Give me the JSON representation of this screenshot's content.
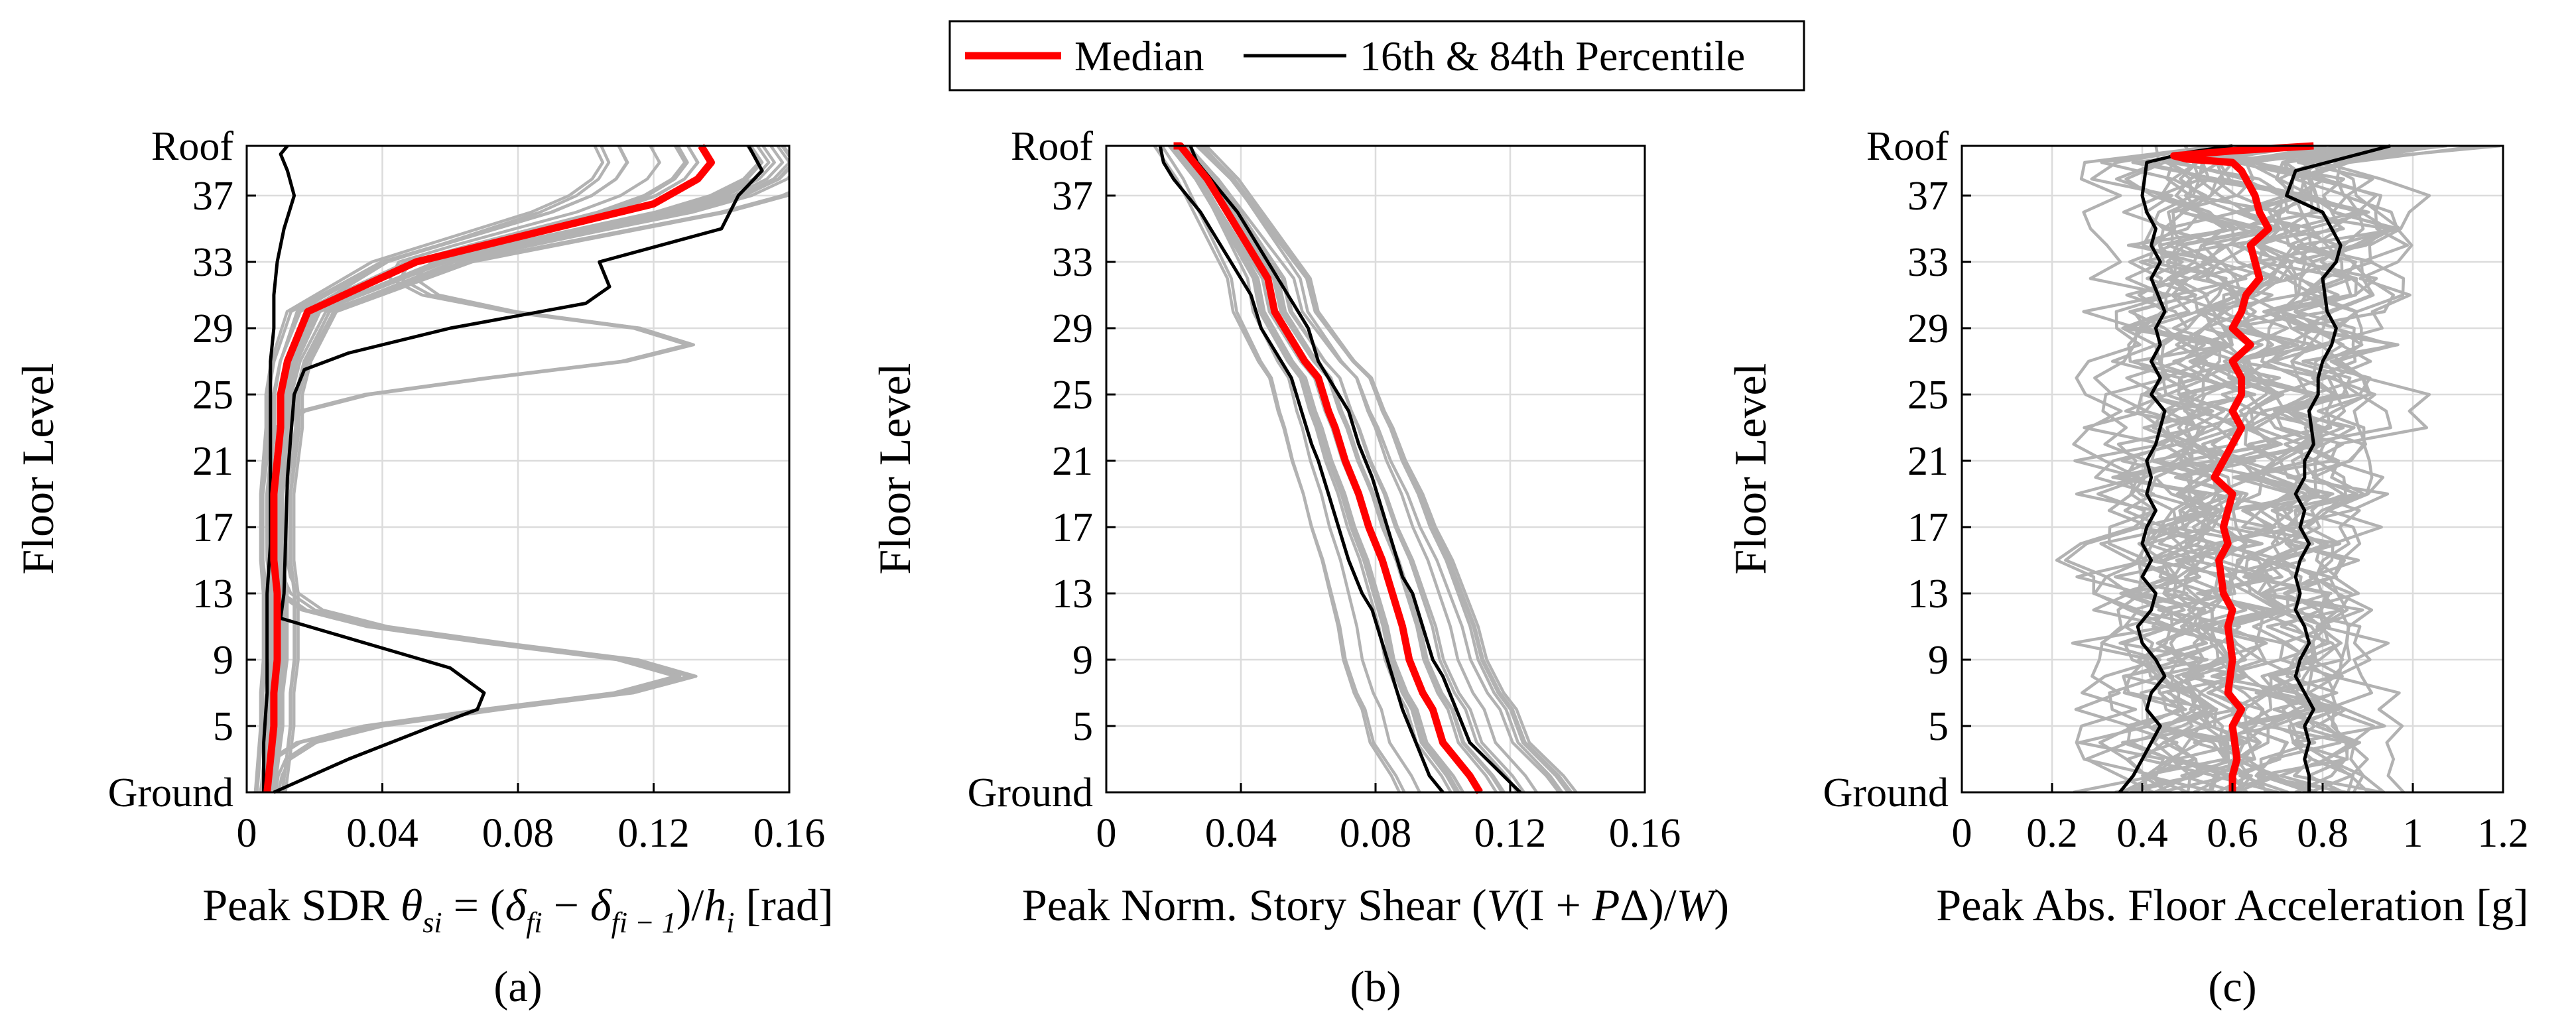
{
  "legend": {
    "entries": [
      {
        "label": "Median",
        "color": "#ff0000"
      },
      {
        "label": "16th & 84th Percentile",
        "color": "#000000"
      }
    ]
  },
  "colors": {
    "median": "#ff0000",
    "percentile": "#000000",
    "individual": "#b2b2b2",
    "grid": "#dcdcdc"
  },
  "chart_data": [
    {
      "type": "line",
      "panel_label": "(a)",
      "xlabel": "Peak SDR θsi = (δfi − δfi − 1)/hi [rad]",
      "xlabel_parts": {
        "prefix": "Peak SDR ",
        "theta": "θ",
        "theta_sub": "si",
        "eq": " = (",
        "delta1": "δ",
        "sub1": "fi",
        "minus": " − ",
        "delta2": "δ",
        "sub2": "fi − 1",
        "close": ")/",
        "h": "h",
        "h_sub": "i",
        "unit": " [rad]"
      },
      "ylabel": "Floor Level",
      "xlim": [
        0,
        0.16
      ],
      "xticks": [
        0,
        0.04,
        0.08,
        0.12,
        0.16
      ],
      "xtick_labels": [
        "0",
        "0.04",
        "0.08",
        "0.12",
        "0.16"
      ],
      "ylim": [
        1,
        40
      ],
      "yticks": [
        1,
        5,
        9,
        13,
        17,
        21,
        25,
        29,
        33,
        37,
        40
      ],
      "ytick_labels": [
        "Ground",
        "5",
        "9",
        "13",
        "17",
        "21",
        "25",
        "29",
        "33",
        "37",
        "Roof"
      ],
      "series": [
        {
          "name": "Median",
          "x": [
            0.006,
            0.007,
            0.008,
            0.008,
            0.009,
            0.009,
            0.009,
            0.008,
            0.008,
            0.008,
            0.009,
            0.01,
            0.01,
            0.012,
            0.018,
            0.05,
            0.09,
            0.12,
            0.133,
            0.137,
            0.134
          ],
          "y": [
            1,
            3,
            5,
            7,
            9,
            11,
            13,
            15,
            17,
            19,
            21,
            23,
            25,
            27,
            30,
            33,
            35,
            36.5,
            38,
            39,
            40
          ]
        },
        {
          "name": "16th Percentile",
          "x": [
            0.005,
            0.005,
            0.006,
            0.006,
            0.006,
            0.007,
            0.007,
            0.007,
            0.007,
            0.007,
            0.008,
            0.008,
            0.009,
            0.011,
            0.014,
            0.012,
            0.01,
            0.012
          ],
          "y": [
            1,
            4,
            7,
            10,
            13,
            16,
            19,
            22,
            25,
            27,
            29,
            31,
            33,
            35,
            37,
            38.5,
            39.5,
            40
          ]
        },
        {
          "name": "84th Percentile",
          "x": [
            0.008,
            0.03,
            0.055,
            0.068,
            0.07,
            0.06,
            0.035,
            0.01,
            0.011,
            0.012,
            0.014,
            0.017,
            0.03,
            0.06,
            0.1,
            0.107,
            0.104,
            0.14,
            0.145,
            0.152,
            0.148
          ],
          "y": [
            1,
            3,
            5,
            6,
            7,
            8.5,
            10,
            11.5,
            13,
            20,
            25,
            26.5,
            27.5,
            29,
            30.5,
            31.5,
            33,
            35,
            37,
            38.5,
            40
          ]
        }
      ]
    },
    {
      "type": "line",
      "panel_label": "(b)",
      "xlabel": "Peak Norm. Story Shear (V(I + PΔ)/W)",
      "xlabel_parts": {
        "open": "Peak Norm. Story Shear (",
        "V": "V",
        "mid": "(I + ",
        "P": "P",
        "delta": "Δ)/",
        "W": "W",
        "close": ")"
      },
      "ylabel": "Floor Level",
      "xlim": [
        0,
        0.16
      ],
      "xticks": [
        0,
        0.04,
        0.08,
        0.12,
        0.16
      ],
      "xtick_labels": [
        "0",
        "0.04",
        "0.08",
        "0.12",
        "0.16"
      ],
      "ylim": [
        1,
        40
      ],
      "yticks": [
        1,
        5,
        9,
        13,
        17,
        21,
        25,
        29,
        33,
        37,
        40
      ],
      "ytick_labels": [
        "Ground",
        "5",
        "9",
        "13",
        "17",
        "21",
        "25",
        "29",
        "33",
        "37",
        "Roof"
      ],
      "series": [
        {
          "name": "Median",
          "x": [
            0.111,
            0.108,
            0.104,
            0.1,
            0.097,
            0.094,
            0.09,
            0.088,
            0.085,
            0.082,
            0.078,
            0.075,
            0.071,
            0.068,
            0.066,
            0.063,
            0.059,
            0.056,
            0.053,
            0.05,
            0.048,
            0.045,
            0.042,
            0.039,
            0.036,
            0.033,
            0.03,
            0.026,
            0.022,
            0.02
          ],
          "y": [
            1,
            2,
            3,
            4,
            6,
            7,
            9,
            11,
            13,
            15,
            17,
            19,
            21,
            23,
            24,
            26,
            27,
            28,
            29,
            30,
            32,
            33,
            34,
            35,
            36,
            37,
            38,
            39,
            40,
            40
          ]
        },
        {
          "name": "16th Percentile",
          "x": [
            0.1,
            0.096,
            0.092,
            0.088,
            0.085,
            0.082,
            0.079,
            0.076,
            0.072,
            0.069,
            0.066,
            0.063,
            0.061,
            0.058,
            0.055,
            0.052,
            0.049,
            0.046,
            0.043,
            0.04,
            0.037,
            0.034,
            0.031,
            0.028,
            0.024,
            0.02,
            0.017,
            0.016
          ],
          "y": [
            1,
            2,
            4,
            6,
            8,
            10,
            12,
            13,
            15,
            17,
            19,
            21,
            22,
            24,
            26,
            27,
            28,
            29,
            31,
            32,
            33,
            34,
            35,
            36,
            37,
            38,
            39,
            40
          ]
        },
        {
          "name": "84th Percentile",
          "x": [
            0.123,
            0.118,
            0.113,
            0.108,
            0.104,
            0.1,
            0.097,
            0.094,
            0.091,
            0.088,
            0.085,
            0.082,
            0.079,
            0.075,
            0.072,
            0.069,
            0.066,
            0.063,
            0.06,
            0.057,
            0.054,
            0.051,
            0.048,
            0.045,
            0.042,
            0.039,
            0.035,
            0.031,
            0.027,
            0.025
          ],
          "y": [
            1,
            2,
            3,
            4,
            6,
            8,
            9,
            11,
            13,
            14,
            16,
            18,
            20,
            22,
            24,
            25,
            26,
            27,
            29,
            30,
            31,
            32,
            33,
            34,
            35,
            36,
            37,
            38,
            39,
            40
          ]
        }
      ]
    },
    {
      "type": "line",
      "panel_label": "(c)",
      "xlabel": "Peak Abs. Floor Acceleration [g]",
      "ylabel": "Floor Level",
      "xlim": [
        0,
        1.2
      ],
      "xticks": [
        0,
        0.2,
        0.4,
        0.6,
        0.8,
        1,
        1.2
      ],
      "xtick_labels": [
        "0",
        "0.2",
        "0.4",
        "0.6",
        "0.8",
        "1",
        "1.2"
      ],
      "ylim": [
        1,
        40
      ],
      "yticks": [
        1,
        5,
        9,
        13,
        17,
        21,
        25,
        29,
        33,
        37,
        40
      ],
      "ytick_labels": [
        "Ground",
        "5",
        "9",
        "13",
        "17",
        "21",
        "25",
        "29",
        "33",
        "37",
        "Roof"
      ],
      "series": [
        {
          "name": "Median",
          "x": [
            0.6,
            0.6,
            0.61,
            0.6,
            0.62,
            0.59,
            0.6,
            0.59,
            0.6,
            0.58,
            0.57,
            0.59,
            0.58,
            0.6,
            0.56,
            0.58,
            0.6,
            0.62,
            0.6,
            0.62,
            0.62,
            0.6,
            0.64,
            0.6,
            0.62,
            0.63,
            0.66,
            0.65,
            0.64,
            0.68,
            0.66,
            0.65,
            0.63,
            0.62,
            0.6,
            0.5,
            0.47,
            0.6,
            0.78
          ],
          "y": [
            1,
            2,
            3,
            5,
            6,
            7,
            9,
            11,
            12,
            13,
            15,
            16,
            17,
            19,
            20,
            21,
            22,
            23,
            24,
            25,
            26,
            27,
            28,
            29,
            30,
            31,
            32,
            33,
            34,
            35,
            36,
            37,
            38,
            38.5,
            39,
            39.2,
            39.4,
            39.7,
            40
          ]
        },
        {
          "name": "16th Percentile",
          "x": [
            0.35,
            0.38,
            0.4,
            0.42,
            0.44,
            0.41,
            0.42,
            0.45,
            0.43,
            0.4,
            0.39,
            0.42,
            0.43,
            0.4,
            0.42,
            0.4,
            0.41,
            0.43,
            0.41,
            0.42,
            0.41,
            0.43,
            0.45,
            0.42,
            0.44,
            0.42,
            0.44,
            0.43,
            0.45,
            0.42,
            0.44,
            0.42,
            0.43,
            0.41,
            0.4,
            0.41,
            0.5,
            0.6
          ],
          "y": [
            1,
            2,
            3,
            4,
            5,
            6,
            7,
            8,
            9,
            10,
            11,
            12,
            13,
            14,
            15,
            16,
            17,
            18,
            19,
            20,
            21,
            22,
            24,
            25,
            26,
            27,
            28,
            29,
            30,
            32,
            33,
            34,
            35,
            36,
            37,
            39,
            39.6,
            40
          ]
        },
        {
          "name": "84th Percentile",
          "x": [
            0.77,
            0.77,
            0.76,
            0.77,
            0.76,
            0.78,
            0.76,
            0.74,
            0.75,
            0.77,
            0.76,
            0.74,
            0.75,
            0.74,
            0.75,
            0.77,
            0.75,
            0.76,
            0.74,
            0.76,
            0.76,
            0.78,
            0.77,
            0.79,
            0.79,
            0.8,
            0.82,
            0.83,
            0.81,
            0.8,
            0.83,
            0.84,
            0.8,
            0.72,
            0.74,
            0.95
          ],
          "y": [
            1,
            2,
            3,
            4,
            5,
            6,
            7,
            8,
            9,
            10,
            11,
            12,
            13,
            14,
            15,
            16,
            17,
            18,
            19,
            20,
            21,
            22,
            24,
            25,
            26,
            27,
            28,
            29,
            30,
            32,
            33,
            34,
            36,
            37,
            38.5,
            40
          ]
        }
      ]
    }
  ]
}
